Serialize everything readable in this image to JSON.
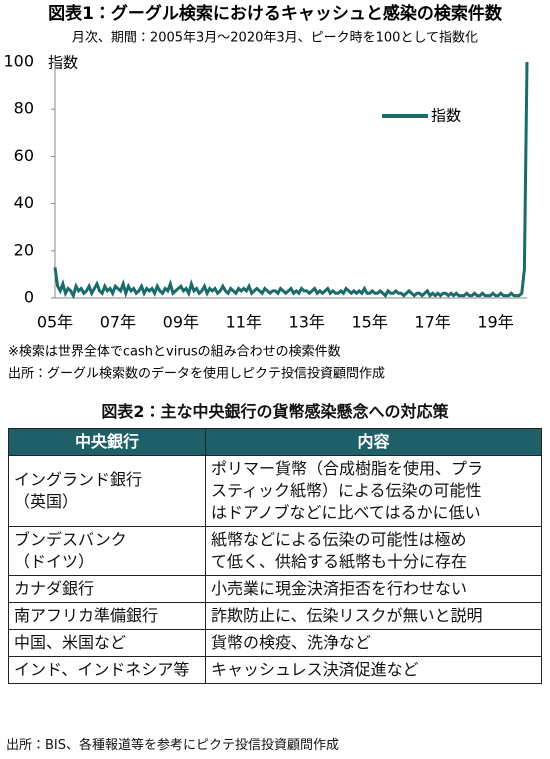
{
  "chart_data": {
    "type": "line",
    "title": "図表1：グーグル検索におけるキャッシュと感染の検索件数",
    "subtitle": "月次、期間：2005年3月～2020年3月、ピーク時を100として指数化",
    "y_label": "指数",
    "categories": [
      "05年",
      null,
      null,
      null,
      null,
      null,
      null,
      null,
      null,
      null,
      null,
      null,
      null,
      null,
      null,
      null,
      null,
      null,
      null,
      null,
      null,
      null,
      null,
      null,
      "07年",
      null,
      null,
      null,
      null,
      null,
      null,
      null,
      null,
      null,
      null,
      null,
      null,
      null,
      null,
      null,
      null,
      null,
      null,
      null,
      null,
      null,
      null,
      null,
      "09年",
      null,
      null,
      null,
      null,
      null,
      null,
      null,
      null,
      null,
      null,
      null,
      null,
      null,
      null,
      null,
      null,
      null,
      null,
      null,
      null,
      null,
      null,
      null,
      "11年",
      null,
      null,
      null,
      null,
      null,
      null,
      null,
      null,
      null,
      null,
      null,
      null,
      null,
      null,
      null,
      null,
      null,
      null,
      null,
      null,
      null,
      null,
      null,
      "13年",
      null,
      null,
      null,
      null,
      null,
      null,
      null,
      null,
      null,
      null,
      null,
      null,
      null,
      null,
      null,
      null,
      null,
      null,
      null,
      null,
      null,
      null,
      null,
      "15年",
      null,
      null,
      null,
      null,
      null,
      null,
      null,
      null,
      null,
      null,
      null,
      null,
      null,
      null,
      null,
      null,
      null,
      null,
      null,
      null,
      null,
      null,
      null,
      "17年",
      null,
      null,
      null,
      null,
      null,
      null,
      null,
      null,
      null,
      null,
      null,
      null,
      null,
      null,
      null,
      null,
      null,
      null,
      null,
      null,
      null,
      null,
      null,
      "19年",
      null,
      null,
      null,
      null,
      null,
      null,
      null,
      null,
      null,
      null,
      null,
      null
    ],
    "series": [
      {
        "name": "指数",
        "color": "#1b6b6b",
        "values": [
          13,
          5,
          3,
          6,
          2,
          4,
          3,
          1,
          5,
          3,
          4,
          2,
          3,
          5,
          2,
          4,
          6,
          3,
          2,
          5,
          3,
          4,
          2,
          5,
          4,
          3,
          6,
          2,
          5,
          3,
          4,
          2,
          3,
          5,
          2,
          4,
          3,
          4,
          2,
          5,
          3,
          2,
          4,
          3,
          6,
          2,
          3,
          4,
          5,
          3,
          4,
          2,
          6,
          3,
          4,
          2,
          3,
          5,
          2,
          4,
          3,
          4,
          2,
          3,
          5,
          3,
          2,
          4,
          3,
          2,
          4,
          3,
          4,
          3,
          5,
          2,
          3,
          4,
          3,
          2,
          4,
          3,
          2,
          3,
          3,
          2,
          4,
          3,
          2,
          3,
          4,
          2,
          3,
          2,
          4,
          3,
          3,
          2,
          3,
          4,
          2,
          3,
          2,
          3,
          4,
          2,
          3,
          2,
          2,
          3,
          2,
          4,
          3,
          2,
          3,
          2,
          3,
          2,
          4,
          2,
          2,
          3,
          2,
          2,
          3,
          2,
          1,
          3,
          2,
          2,
          3,
          2,
          2,
          1,
          2,
          3,
          2,
          1,
          2,
          2,
          1,
          2,
          3,
          1,
          2,
          1,
          2,
          1,
          2,
          2,
          1,
          2,
          1,
          2,
          1,
          1,
          1,
          2,
          1,
          1,
          2,
          1,
          1,
          2,
          1,
          1,
          1,
          2,
          1,
          1,
          2,
          1,
          1,
          1,
          2,
          1,
          1,
          1,
          2,
          12,
          100
        ]
      }
    ],
    "ylim": [
      0,
      100
    ],
    "yticks": [
      0,
      20,
      40,
      60,
      80,
      100
    ],
    "grid": false,
    "notes": [
      "※検索は世界全体でcashとvirusの組み合わせの検索件数",
      "出所：グーグル検索数のデータを使用しピクテ投信投資顧問作成"
    ]
  },
  "table": {
    "title": "図表2：主な中央銀行の貨幣感染懸念への対応策",
    "header": [
      "中央銀行",
      "内容"
    ],
    "rows": [
      [
        [
          "イングランド銀行",
          "（英国）"
        ],
        [
          "ポリマー貨幣（合成樹脂を使用、プラ",
          "スティック紙幣）による伝染の可能性",
          "はドアノブなどに比べてはるかに低い"
        ]
      ],
      [
        [
          "ブンデスバンク",
          "（ドイツ）"
        ],
        [
          "紙幣などによる伝染の可能性は極め",
          "て低く、供給する紙幣も十分に存在"
        ]
      ],
      [
        [
          "カナダ銀行"
        ],
        [
          "小売業に現金決済拒否を行わせない"
        ]
      ],
      [
        [
          "南アフリカ準備銀行"
        ],
        [
          "詐欺防止に、伝染リスクが無いと説明"
        ]
      ],
      [
        [
          "中国、米国など"
        ],
        [
          "貨幣の検疫、洗浄など"
        ]
      ],
      [
        [
          "インド、インドネシア等"
        ],
        [
          "キャッシュレス決済促進など"
        ]
      ]
    ],
    "source": "出所：BIS、各種報道等を参考にピクテ投信投資顧問作成"
  }
}
